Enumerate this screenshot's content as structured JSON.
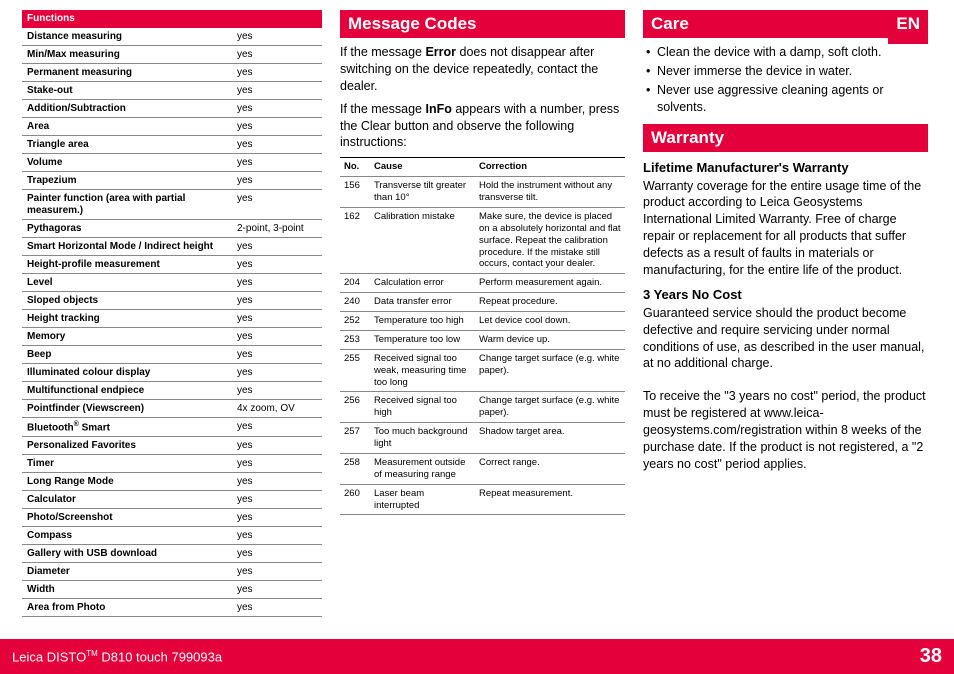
{
  "brand_color": "#e4003a",
  "col1": {
    "functions_header": "Functions",
    "rows": [
      {
        "name": "Distance measuring",
        "val": "yes"
      },
      {
        "name": "Min/Max measuring",
        "val": "yes"
      },
      {
        "name": "Permanent measuring",
        "val": "yes"
      },
      {
        "name": "Stake-out",
        "val": "yes"
      },
      {
        "name": "Addition/Subtraction",
        "val": "yes"
      },
      {
        "name": "Area",
        "val": "yes"
      },
      {
        "name": "Triangle area",
        "val": "yes"
      },
      {
        "name": "Volume",
        "val": "yes"
      },
      {
        "name": "Trapezium",
        "val": "yes"
      },
      {
        "name": "Painter function (area with partial measurem.)",
        "val": "yes"
      },
      {
        "name": "Pythagoras",
        "val": "2-point, 3-point"
      },
      {
        "name": "Smart Horizontal Mode / Indirect height",
        "val": "yes"
      },
      {
        "name": "Height-profile measurement",
        "val": "yes"
      },
      {
        "name": "Level",
        "val": "yes"
      },
      {
        "name": "Sloped objects",
        "val": "yes"
      },
      {
        "name": "Height tracking",
        "val": "yes"
      },
      {
        "name": "Memory",
        "val": "yes"
      },
      {
        "name": "Beep",
        "val": "yes"
      },
      {
        "name": "Illuminated colour display",
        "val": "yes"
      },
      {
        "name": "Multifunctional endpiece",
        "val": "yes"
      },
      {
        "name": "Pointfinder (Viewscreen)",
        "val": "4x zoom, OV"
      },
      {
        "name": "Bluetooth® Smart",
        "val": "yes"
      },
      {
        "name": "Personalized Favorites",
        "val": "yes"
      },
      {
        "name": "Timer",
        "val": "yes"
      },
      {
        "name": "Long Range Mode",
        "val": "yes"
      },
      {
        "name": "Calculator",
        "val": "yes"
      },
      {
        "name": "Photo/Screenshot",
        "val": "yes"
      },
      {
        "name": "Compass",
        "val": "yes"
      },
      {
        "name": "Gallery with USB download",
        "val": "yes"
      },
      {
        "name": "Diameter",
        "val": "yes"
      },
      {
        "name": "Width",
        "val": "yes"
      },
      {
        "name": "Area from Photo",
        "val": "yes"
      }
    ]
  },
  "col2": {
    "title": "Message Codes",
    "p1_a": "If the message ",
    "p1_b": "Error",
    "p1_c": " does not disappear after switching on the device repeatedly, contact the dealer.",
    "p2_a": "If the message ",
    "p2_b": "InFo",
    "p2_c": " appears with a number, press the Clear button and observe the following instructions:",
    "err_headers": {
      "no": "No.",
      "cause": "Cause",
      "corr": "Correction"
    },
    "errs": [
      {
        "no": "156",
        "cause": "Transverse tilt greater than 10°",
        "corr": "Hold the instrument without any transverse tilt."
      },
      {
        "no": "162",
        "cause": "Calibration mistake",
        "corr": "Make sure, the device is placed on a absolutely horizontal and flat surface. Repeat the calibration procedure. If the mistake still occurs, contact your dealer."
      },
      {
        "no": "204",
        "cause": "Calculation error",
        "corr": "Perform measurement again."
      },
      {
        "no": "240",
        "cause": "Data transfer error",
        "corr": "Repeat procedure."
      },
      {
        "no": "252",
        "cause": "Temperature too high",
        "corr": "Let device cool down."
      },
      {
        "no": "253",
        "cause": "Temperature too low",
        "corr": "Warm device up."
      },
      {
        "no": "255",
        "cause": "Received signal too weak, measuring time too long",
        "corr": "Change target surface (e.g. white paper)."
      },
      {
        "no": "256",
        "cause": "Received signal too high",
        "corr": "Change target surface (e.g. white paper)."
      },
      {
        "no": "257",
        "cause": "Too much background light",
        "corr": "Shadow target area."
      },
      {
        "no": "258",
        "cause": "Measurement outside of measuring range",
        "corr": "Correct range."
      },
      {
        "no": "260",
        "cause": "Laser beam interrupted",
        "corr": "Repeat measurement."
      }
    ]
  },
  "col3": {
    "care_title": "Care",
    "lang": "EN",
    "care_items": [
      "Clean the device with a damp, soft cloth.",
      "Never immerse the device in water.",
      "Never use aggressive cleaning agents or solvents."
    ],
    "warranty_title": "Warranty",
    "h1": "Lifetime Manufacturer's Warranty",
    "p1": "Warranty coverage for the entire usage time of the product according to Leica Geosystems International Limited Warranty. Free of charge repair or replacement for all products that suffer defects as a result of faults in materials or manufacturing, for the entire life of the product.",
    "h2": "3 Years No Cost",
    "p2": "Guaranteed service should the product become defective and require servicing under normal  conditions of use, as described in the user manual, at no additional charge.",
    "p3": "To receive the \"3 years no cost\" period, the product must be registered at www.leica-geosystems.com/registration within 8 weeks of the purchase date. If the product is not registered, a \"2 years no cost\" period applies."
  },
  "footer": {
    "product": "Leica DISTO™ D810 touch 799093a",
    "page": "38"
  }
}
